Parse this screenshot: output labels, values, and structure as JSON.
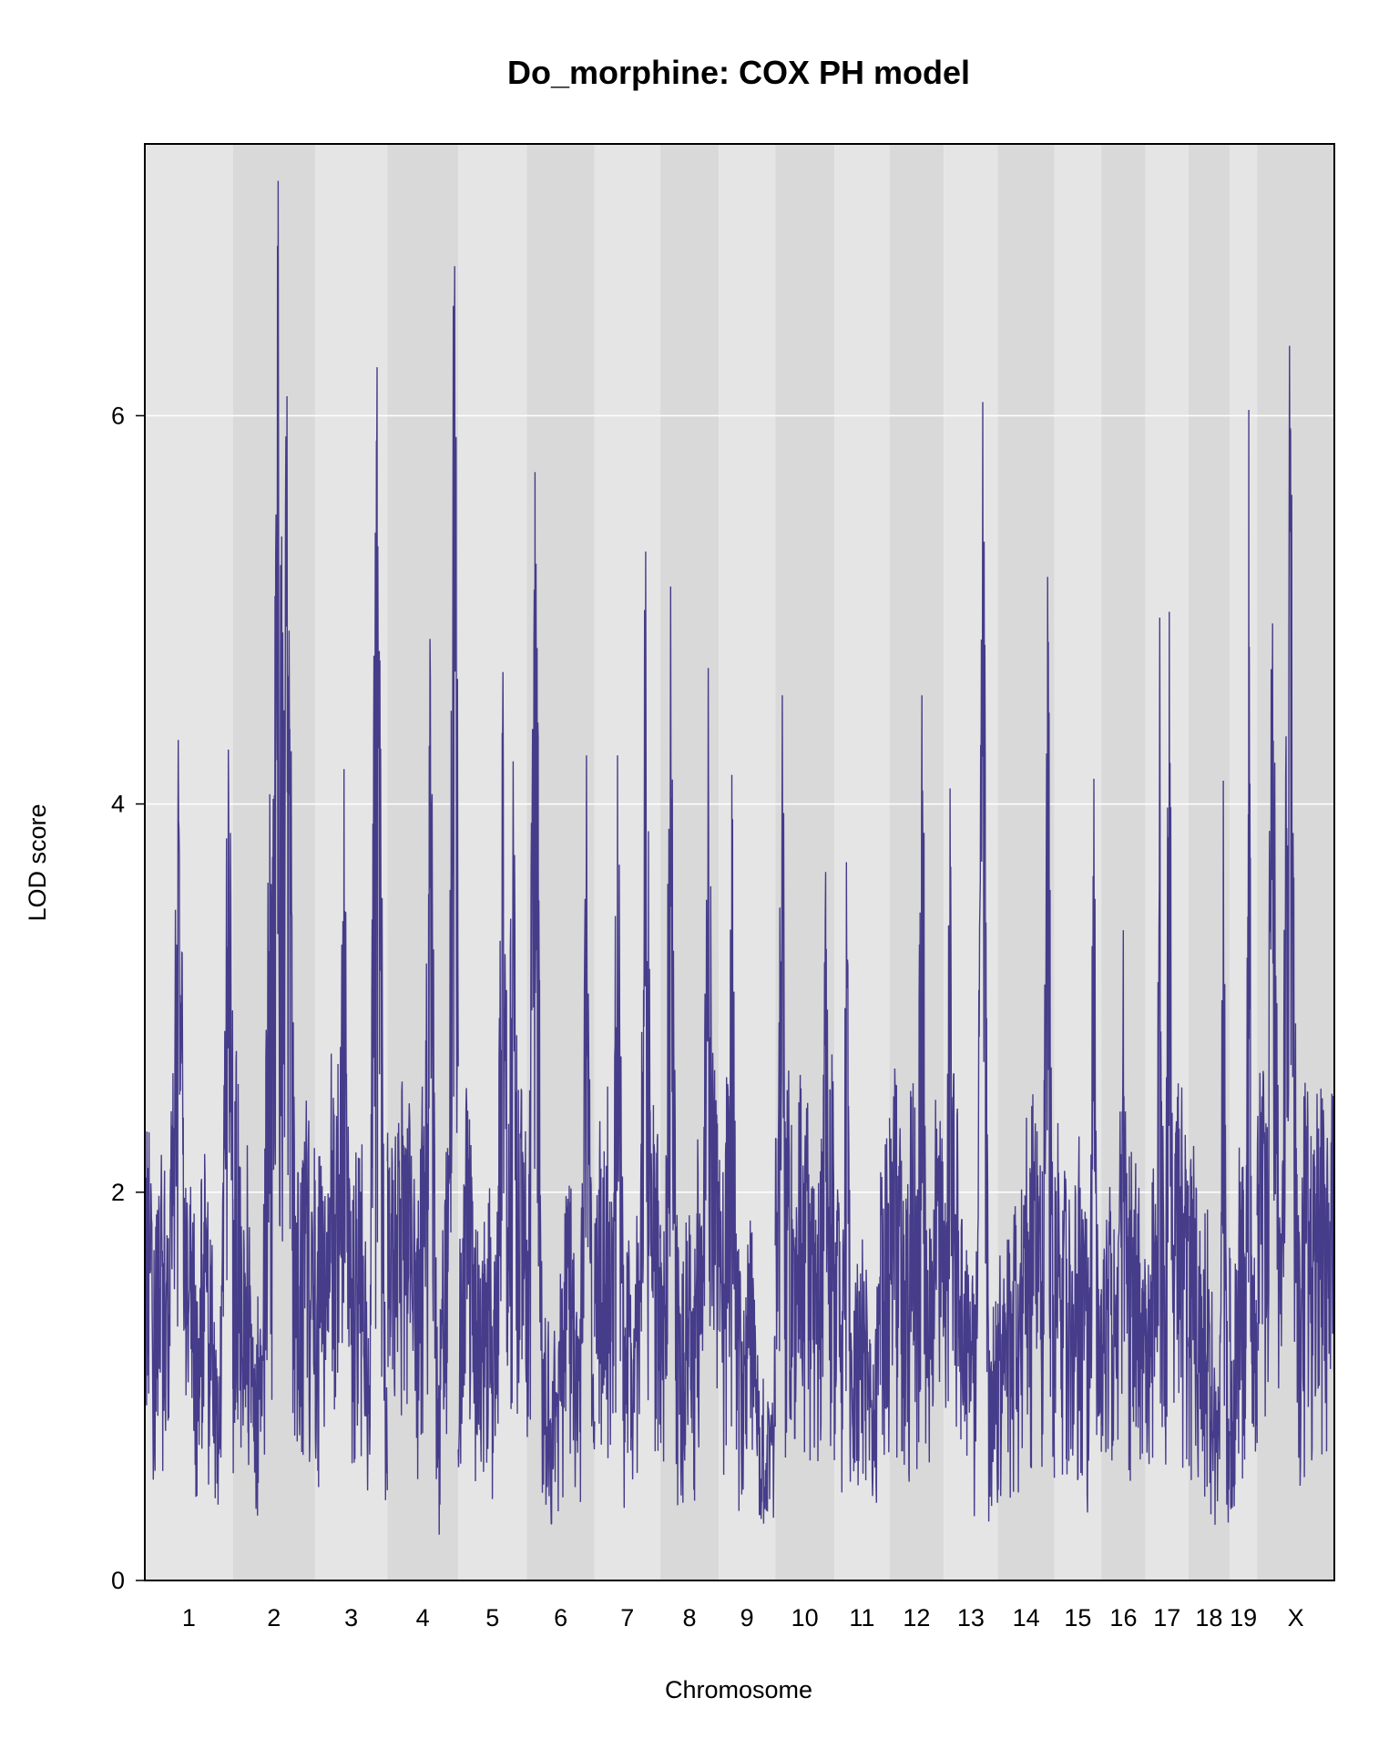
{
  "chart_data": {
    "type": "line",
    "title": "Do_morphine: COX PH model",
    "xlabel": "Chromosome",
    "ylabel": "LOD score",
    "ylim": [
      0,
      7.4
    ],
    "y_ticks": [
      0,
      2,
      4,
      6
    ],
    "grid": true,
    "line_color": "#453c8a",
    "band_colors": [
      "#e5e5e5",
      "#d9d9d9"
    ],
    "chromosomes": [
      {
        "label": "1",
        "length": 195,
        "peaks": [
          {
            "pos": 0.38,
            "lod": 4.33
          },
          {
            "pos": 0.95,
            "lod": 4.28
          }
        ]
      },
      {
        "label": "2",
        "length": 182,
        "peaks": [
          {
            "pos": 0.55,
            "lod": 7.21
          },
          {
            "pos": 0.66,
            "lod": 6.1
          },
          {
            "pos": 0.45,
            "lod": 4.05
          }
        ]
      },
      {
        "label": "3",
        "length": 160,
        "peaks": [
          {
            "pos": 0.4,
            "lod": 4.18
          },
          {
            "pos": 0.86,
            "lod": 6.25
          }
        ]
      },
      {
        "label": "4",
        "length": 157,
        "peaks": [
          {
            "pos": 0.6,
            "lod": 4.85
          },
          {
            "pos": 0.95,
            "lod": 6.77
          }
        ]
      },
      {
        "label": "5",
        "length": 152,
        "peaks": [
          {
            "pos": 0.65,
            "lod": 4.68
          },
          {
            "pos": 0.8,
            "lod": 4.22
          }
        ]
      },
      {
        "label": "6",
        "length": 150,
        "peaks": [
          {
            "pos": 0.12,
            "lod": 5.71
          },
          {
            "pos": 0.88,
            "lod": 4.25
          }
        ]
      },
      {
        "label": "7",
        "length": 145,
        "peaks": [
          {
            "pos": 0.78,
            "lod": 5.3
          },
          {
            "pos": 0.35,
            "lod": 4.25
          }
        ]
      },
      {
        "label": "8",
        "length": 130,
        "peaks": [
          {
            "pos": 0.18,
            "lod": 5.12
          },
          {
            "pos": 0.82,
            "lod": 4.7
          }
        ]
      },
      {
        "label": "9",
        "length": 125,
        "peaks": [
          {
            "pos": 0.23,
            "lod": 4.15
          }
        ]
      },
      {
        "label": "10",
        "length": 131,
        "peaks": [
          {
            "pos": 0.12,
            "lod": 4.56
          },
          {
            "pos": 0.85,
            "lod": 3.65
          }
        ]
      },
      {
        "label": "11",
        "length": 122,
        "peaks": [
          {
            "pos": 0.22,
            "lod": 3.7
          }
        ]
      },
      {
        "label": "12",
        "length": 120,
        "peaks": [
          {
            "pos": 0.6,
            "lod": 4.56
          }
        ]
      },
      {
        "label": "13",
        "length": 120,
        "peaks": [
          {
            "pos": 0.72,
            "lod": 6.07
          },
          {
            "pos": 0.12,
            "lod": 4.08
          }
        ]
      },
      {
        "label": "14",
        "length": 125,
        "peaks": [
          {
            "pos": 0.88,
            "lod": 5.17
          }
        ]
      },
      {
        "label": "15",
        "length": 104,
        "peaks": [
          {
            "pos": 0.84,
            "lod": 4.13
          }
        ]
      },
      {
        "label": "16",
        "length": 98,
        "peaks": [
          {
            "pos": 0.5,
            "lod": 3.35
          }
        ]
      },
      {
        "label": "17",
        "length": 95,
        "peaks": [
          {
            "pos": 0.55,
            "lod": 4.99
          },
          {
            "pos": 0.33,
            "lod": 4.96
          }
        ]
      },
      {
        "label": "18",
        "length": 91,
        "peaks": [
          {
            "pos": 0.85,
            "lod": 4.12
          }
        ]
      },
      {
        "label": "19",
        "length": 61,
        "peaks": [
          {
            "pos": 0.7,
            "lod": 6.03
          }
        ]
      },
      {
        "label": "X",
        "length": 171,
        "peaks": [
          {
            "pos": 0.42,
            "lod": 6.36
          },
          {
            "pos": 0.2,
            "lod": 4.93
          }
        ]
      }
    ]
  }
}
